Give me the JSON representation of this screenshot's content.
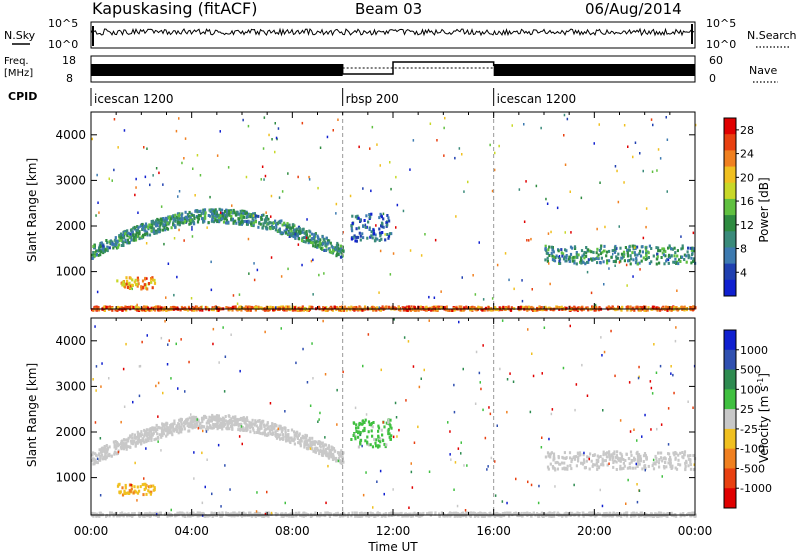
{
  "header": {
    "station": "Kapuskasing (fitACF)",
    "beam": "Beam 03",
    "date": "06/Aug/2014"
  },
  "summary": {
    "nsky_label": "N.Sky",
    "nsky_ticks": [
      "10^5",
      "10^0"
    ],
    "nsearch_label": "N.Search",
    "nsearch_ticks": [
      "10^5",
      "10^0"
    ],
    "freq_label": "Freq.",
    "freq_unit": "[MHz]",
    "freq_ticks": [
      "18",
      "8"
    ],
    "nave_label": "Nave",
    "nave_ticks": [
      "60",
      "0"
    ],
    "cpid_label": "CPID",
    "cpid_segments": [
      {
        "label": "icescan 1200",
        "start_hour": 0,
        "end_hour": 10
      },
      {
        "label": "rbsp 200",
        "start_hour": 10,
        "end_hour": 16
      },
      {
        "label": "icescan 1200",
        "start_hour": 16,
        "end_hour": 24
      }
    ]
  },
  "chart_data": [
    {
      "type": "heatmap",
      "title": "",
      "xlabel": "Time UT",
      "ylabel": "Slant Range [km]",
      "xlim": [
        0,
        24
      ],
      "ylim": [
        180,
        4500
      ],
      "x_ticks": [
        "00:00",
        "04:00",
        "08:00",
        "12:00",
        "16:00",
        "20:00",
        "00:00"
      ],
      "y_ticks": [
        1000,
        2000,
        3000,
        4000
      ],
      "colorbar": {
        "label": "Power [dB]",
        "ticks": [
          4,
          8,
          12,
          16,
          20,
          24,
          28
        ],
        "range": [
          0,
          30
        ],
        "colors": [
          "#1020d0",
          "#2040b0",
          "#3d7ab0",
          "#3a8a7a",
          "#2e8b40",
          "#60c040",
          "#c8d828",
          "#f0c020",
          "#f08020",
          "#e84010",
          "#e00000"
        ]
      },
      "regions": [
        {
          "name": "ground scatter band",
          "t": [
            0,
            24
          ],
          "range_km": [
            180,
            260
          ],
          "value": 24
        },
        {
          "name": "morning arc",
          "t": [
            0,
            10
          ],
          "range_km": [
            1300,
            2300
          ],
          "value": 10
        },
        {
          "name": "morning low patch",
          "t": [
            1,
            2.5
          ],
          "range_km": [
            650,
            900
          ],
          "value": 22
        },
        {
          "name": "rbsp tail",
          "t": [
            10.3,
            11.9
          ],
          "range_km": [
            1700,
            2300
          ],
          "value": 6
        },
        {
          "name": "evening band",
          "t": [
            18,
            24
          ],
          "range_km": [
            1200,
            1600
          ],
          "value": 10
        }
      ]
    },
    {
      "type": "heatmap",
      "title": "",
      "xlabel": "Time UT",
      "ylabel": "Slant Range [km]",
      "xlim": [
        0,
        24
      ],
      "ylim": [
        180,
        4500
      ],
      "x_ticks": [
        "00:00",
        "04:00",
        "08:00",
        "12:00",
        "16:00",
        "20:00",
        "00:00"
      ],
      "y_ticks": [
        1000,
        2000,
        3000,
        4000
      ],
      "colorbar": {
        "label": "Velocity [m s^-1]",
        "ticks": [
          "1000",
          "500",
          "100",
          "25",
          "-25",
          "-100",
          "-500",
          "-1000"
        ],
        "range": [
          -1000,
          1000
        ],
        "colors": [
          "#1020d0",
          "#3050b0",
          "#2e8b50",
          "#40c040",
          "#c8c8c8",
          "#f0c020",
          "#f08020",
          "#e84010",
          "#e00000"
        ]
      },
      "regions": [
        {
          "name": "ground scatter band",
          "t": [
            0,
            24
          ],
          "range_km": [
            180,
            260
          ],
          "value": 0
        },
        {
          "name": "morning arc",
          "t": [
            0,
            10
          ],
          "range_km": [
            1300,
            2300
          ],
          "value": 0
        },
        {
          "name": "morning low patch",
          "t": [
            1,
            2.5
          ],
          "range_km": [
            650,
            900
          ],
          "value": -300
        },
        {
          "name": "rbsp tail",
          "t": [
            10.3,
            11.9
          ],
          "range_km": [
            1700,
            2300
          ],
          "value": 150
        },
        {
          "name": "evening band",
          "t": [
            18,
            24
          ],
          "range_km": [
            1200,
            1600
          ],
          "value": 0
        }
      ]
    }
  ]
}
